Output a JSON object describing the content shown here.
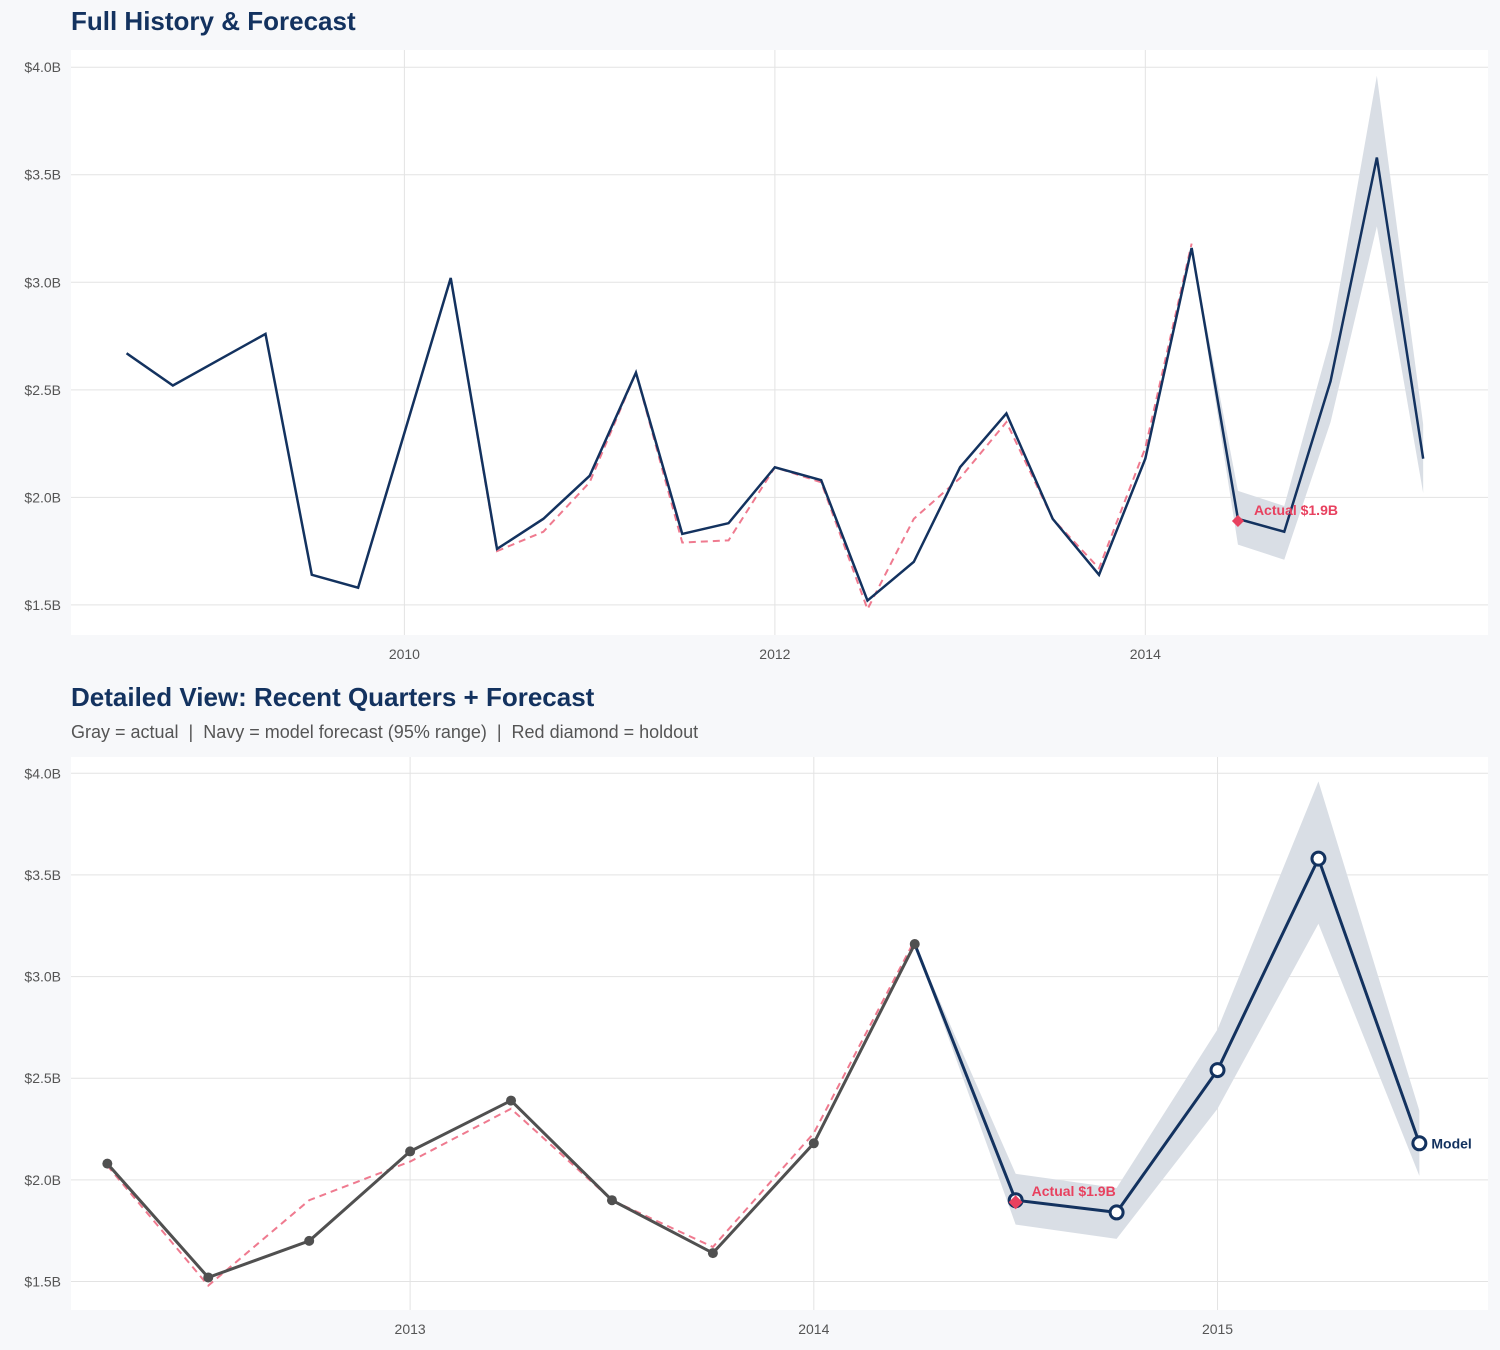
{
  "chart_data": [
    {
      "type": "line",
      "title": "Full History & Forecast",
      "x_start": 2008.5,
      "x_step": 0.25,
      "xlim": [
        2008.2,
        2015.85
      ],
      "ylim": [
        1.36,
        4.08
      ],
      "xticks": [
        2010,
        2012,
        2014
      ],
      "xtick_labels": [
        "2010",
        "2012",
        "2014"
      ],
      "yticks": [
        1.5,
        2.0,
        2.5,
        3.0,
        3.5,
        4.0
      ],
      "ytick_labels": [
        "$1.5B",
        "$2.0B",
        "$2.5B",
        "$3.0B",
        "$3.5B",
        "$4.0B"
      ],
      "grid": true
    },
    {
      "type": "line",
      "title": "Detailed View: Recent Quarters + Forecast",
      "subtitle": "Gray = actual  |  Navy = model forecast (95% range)  |  Red diamond = holdout",
      "xlim": [
        2012.16,
        2015.67
      ],
      "ylim": [
        1.36,
        4.08
      ],
      "xticks": [
        2013,
        2014,
        2015
      ],
      "xtick_labels": [
        "2013",
        "2014",
        "2015"
      ],
      "yticks": [
        1.5,
        2.0,
        2.5,
        3.0,
        3.5,
        4.0
      ],
      "ytick_labels": [
        "$1.5B",
        "$2.0B",
        "$2.5B",
        "$3.0B",
        "$3.5B",
        "$4.0B"
      ],
      "grid": true,
      "end_label": "Model",
      "start": 2012.25
    }
  ],
  "series": {
    "actual": {
      "x_start": 2008.5,
      "values": [
        2.67,
        2.52,
        2.64,
        2.76,
        1.64,
        1.58,
        2.3,
        3.02,
        1.76,
        1.9,
        2.1,
        2.58,
        1.83,
        1.88,
        2.14,
        2.08,
        1.52,
        1.7,
        2.14,
        2.39,
        1.9,
        1.64,
        2.18,
        3.16
      ]
    },
    "fitted": {
      "x_start": 2009.75,
      "values": [
        1.58,
        2.3,
        3.02,
        1.75,
        1.84,
        2.07,
        2.58,
        1.79,
        1.8,
        2.14,
        2.07,
        1.48,
        1.9,
        2.09,
        2.35,
        1.9,
        1.67,
        2.23,
        3.18
      ]
    },
    "forecast": {
      "x_start": 2014.25,
      "values": [
        3.16,
        1.9,
        1.84,
        2.54,
        3.58,
        2.18
      ],
      "upper": [
        3.16,
        2.03,
        1.96,
        2.74,
        3.96,
        2.34
      ],
      "lower": [
        3.16,
        1.78,
        1.71,
        2.35,
        3.26,
        2.02
      ]
    },
    "holdout": {
      "x": 2014.5,
      "value": 1.89,
      "label": "Actual $1.9B"
    }
  },
  "colors": {
    "navy": "#13325f",
    "gray": "#505050",
    "red": "#e8415f",
    "band": "#d9dee5",
    "grid": "#e3e3e3"
  }
}
